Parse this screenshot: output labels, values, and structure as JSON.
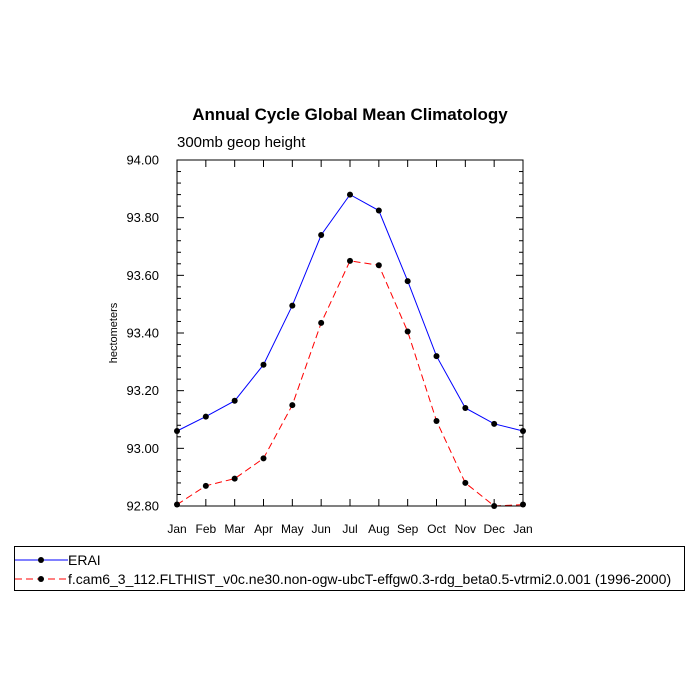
{
  "chart_data": {
    "type": "line",
    "title": "Annual Cycle Global Mean Climatology",
    "subtitle": "300mb geop height",
    "ylabel": "hectometers",
    "xlabel": "",
    "categories": [
      "Jan",
      "Feb",
      "Mar",
      "Apr",
      "May",
      "Jun",
      "Jul",
      "Aug",
      "Sep",
      "Oct",
      "Nov",
      "Dec",
      "Jan"
    ],
    "ylim": [
      92.8,
      94.0
    ],
    "yticks": [
      "92.80",
      "93.00",
      "93.20",
      "93.40",
      "93.60",
      "93.80",
      "94.00"
    ],
    "series": [
      {
        "name": "ERAI",
        "color": "#0000ff",
        "dash": "solid",
        "values": [
          93.06,
          93.11,
          93.165,
          93.29,
          93.495,
          93.74,
          93.88,
          93.825,
          93.58,
          93.32,
          93.14,
          93.085,
          93.06
        ]
      },
      {
        "name": "f.cam6_3_112.FLTHIST_v0c.ne30.non-ogw-ubcT-effgw0.3-rdg_beta0.5-vtrmi2.0.001 (1996-2000)",
        "color": "#ff0000",
        "dash": "dashed",
        "values": [
          92.805,
          92.87,
          92.895,
          92.965,
          93.15,
          93.435,
          93.65,
          93.635,
          93.405,
          93.095,
          92.88,
          92.8,
          92.805
        ]
      }
    ],
    "legend_placement": "bottom"
  }
}
